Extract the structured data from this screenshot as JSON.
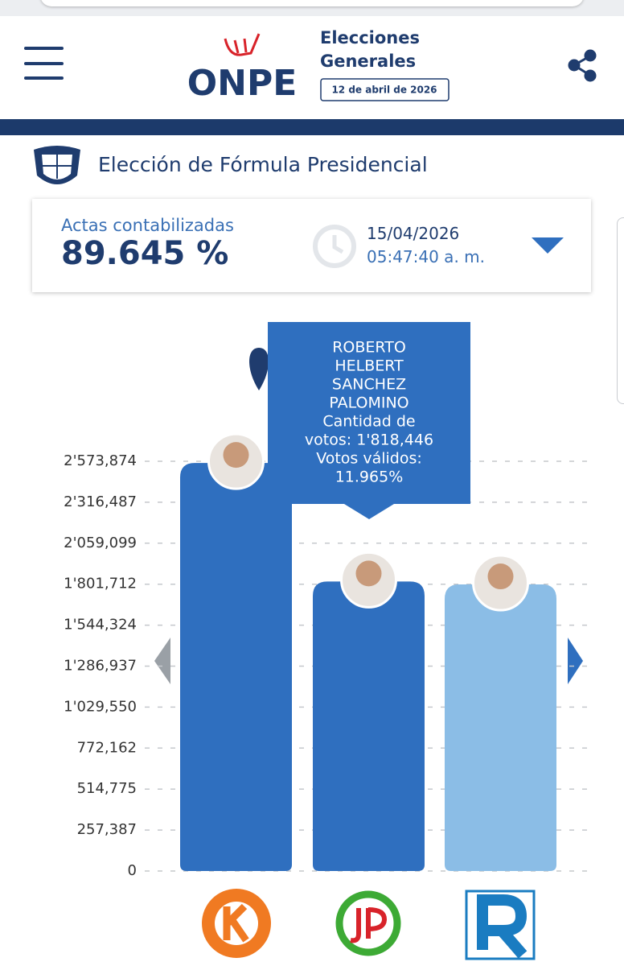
{
  "header": {
    "logo": "ONPE",
    "title_line1": "Elecciones",
    "title_line2": "Generales",
    "date": "12 de abril de 2026"
  },
  "section_title": "Elección de Fórmula Presidencial",
  "summary": {
    "label": "Actas contabilizadas",
    "value": "89.645 %",
    "date": "15/04/2026",
    "time": "05:47:40 a. m."
  },
  "tooltip": {
    "lines": [
      "ROBERTO",
      "HELBERT",
      "SANCHEZ",
      "PALOMINO",
      "Cantidad de",
      "votos: 1'818,446",
      "Votos válidos:",
      "11.965%"
    ]
  },
  "chart_data": {
    "type": "bar",
    "categories": [
      null,
      null,
      null
    ],
    "values": [
      2563000,
      1818446,
      1800000
    ],
    "colors": [
      "#2f6fbf",
      "#2f6fbf",
      "#8bbde6"
    ],
    "ylim": [
      0,
      2573874
    ],
    "yticks": [
      0,
      {
        "value": 257387,
        "label": "257,387"
      },
      {
        "value": 514775,
        "label": "514,775"
      },
      {
        "value": 772162,
        "label": "772,162"
      },
      {
        "value": 1029550,
        "label": "1'029,550"
      },
      {
        "value": 1286937,
        "label": "1'286,937"
      },
      {
        "value": 1544324,
        "label": "1'544,324"
      },
      {
        "value": 1801712,
        "label": "1'801,712"
      },
      {
        "value": 2059099,
        "label": "2'059,099"
      },
      {
        "value": 2316487,
        "label": "2'316,487"
      },
      {
        "value": 2573874,
        "label": "2'573,874"
      }
    ],
    "grid": true
  }
}
